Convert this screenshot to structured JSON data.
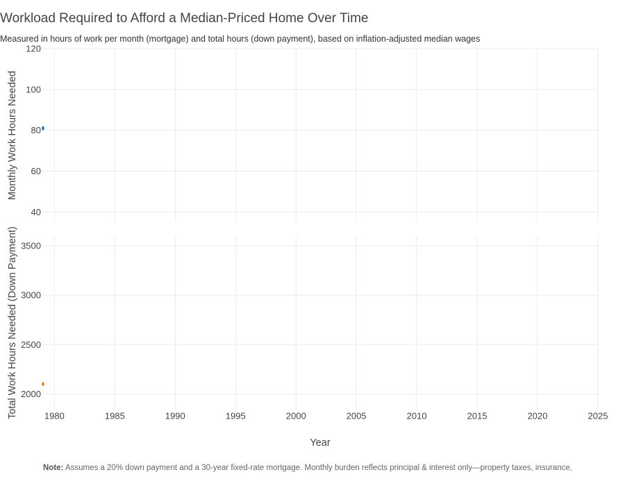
{
  "title": "Workload Required to Afford a Median-Priced Home Over Time",
  "subtitle": "Measured in hours of work per month (mortgage) and total hours (down payment), based on inflation-adjusted median wages",
  "note": {
    "label": "Note:",
    "text": " Assumes a 20% down payment and a 30-year fixed-rate mortgage. Monthly burden reflects principal & interest only—property taxes, insurance,"
  },
  "colors": {
    "monthly": "#1f77b4",
    "down_payment": "#ff7f0e",
    "grid": "#ebebeb",
    "text": "#444444"
  },
  "chart_data": [
    {
      "type": "scatter",
      "ylabel": "Monthly Work Hours Needed",
      "xlabel": "",
      "xlim": [
        1979,
        2025
      ],
      "ylim": [
        35,
        120
      ],
      "yticks": [
        40,
        60,
        80,
        100,
        120
      ],
      "xticks": [
        1980,
        1985,
        1990,
        1995,
        2000,
        2005,
        2010,
        2015,
        2020,
        2025
      ],
      "show_x_tick_labels": false,
      "grid": true,
      "series": [
        {
          "color": "#1f77b4",
          "x": [
            1979
          ],
          "y": [
            81
          ]
        }
      ]
    },
    {
      "type": "scatter",
      "ylabel": "Total Work Hours Needed (Down Payment)",
      "xlabel": "Year",
      "xlim": [
        1979,
        2025
      ],
      "ylim": [
        1840,
        3600
      ],
      "yticks": [
        2000,
        2500,
        3000,
        3500
      ],
      "xticks": [
        1980,
        1985,
        1990,
        1995,
        2000,
        2005,
        2010,
        2015,
        2020,
        2025
      ],
      "show_x_tick_labels": true,
      "grid": true,
      "series": [
        {
          "color": "#ff7f0e",
          "x": [
            1979
          ],
          "y": [
            2100
          ]
        }
      ]
    }
  ]
}
